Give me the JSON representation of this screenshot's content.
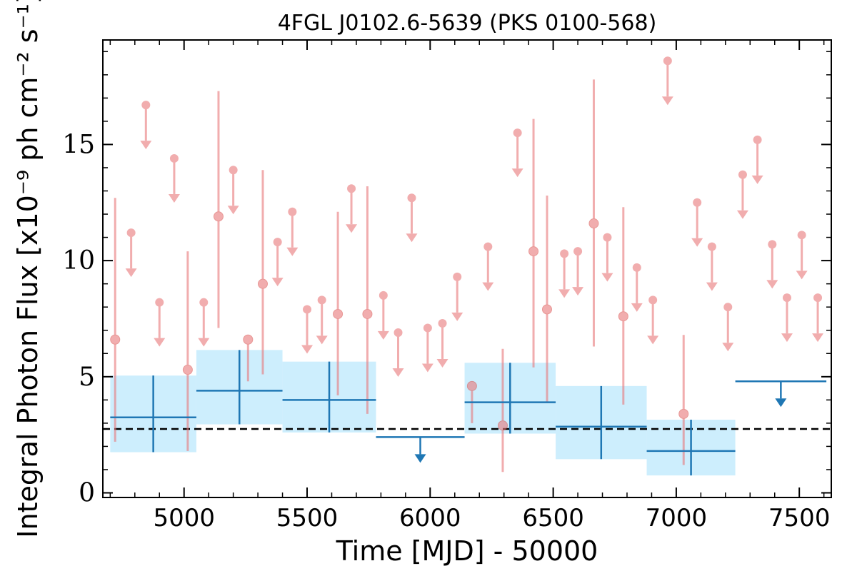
{
  "chart_data": {
    "type": "scatter",
    "title": "4FGL J0102.6-5639 (PKS 0100-568)",
    "xlabel": "Time [MJD] - 50000",
    "ylabel": "Integral Photon Flux [x10⁻⁹ ph cm⁻² s⁻¹]",
    "xlim": [
      4670,
      7630
    ],
    "ylim": [
      -0.2,
      19.5
    ],
    "xticks": [
      5000,
      5500,
      6000,
      6500,
      7000,
      7500
    ],
    "xtick_labels": [
      "5000",
      "5500",
      "6000",
      "6500",
      "7000",
      "7500"
    ],
    "yticks": [
      0,
      5,
      10,
      15
    ],
    "ytick_labels": [
      "0",
      "5",
      "10",
      "15"
    ],
    "grid": false,
    "legend": "none",
    "average_flux": 2.75,
    "colors": {
      "short_bins": "#e8777a",
      "long_bins": "#1f77b4",
      "band": "#cdeefd",
      "average_line": "#000000"
    },
    "short_bin_detections": [
      {
        "x": 4720,
        "y": 6.6,
        "ylo": 2.2,
        "yhi": 12.7
      },
      {
        "x": 5015,
        "y": 5.3,
        "ylo": 1.8,
        "yhi": 10.4
      },
      {
        "x": 5140,
        "y": 11.9,
        "ylo": 7.1,
        "yhi": 17.3
      },
      {
        "x": 5260,
        "y": 6.6,
        "ylo": 4.8,
        "yhi": 6.6
      },
      {
        "x": 5320,
        "y": 9.0,
        "ylo": 5.1,
        "yhi": 13.9
      },
      {
        "x": 5625,
        "y": 7.7,
        "ylo": 4.2,
        "yhi": 12.1
      },
      {
        "x": 5745,
        "y": 7.7,
        "ylo": 3.4,
        "yhi": 13.2
      },
      {
        "x": 6170,
        "y": 4.6,
        "ylo": 3.0,
        "yhi": 4.6
      },
      {
        "x": 6295,
        "y": 2.9,
        "ylo": 0.9,
        "yhi": 6.2
      },
      {
        "x": 6420,
        "y": 10.4,
        "ylo": 5.4,
        "yhi": 16.1
      },
      {
        "x": 6475,
        "y": 7.9,
        "ylo": 3.9,
        "yhi": 12.8
      },
      {
        "x": 6665,
        "y": 11.6,
        "ylo": 6.3,
        "yhi": 17.8
      },
      {
        "x": 6785,
        "y": 7.6,
        "ylo": 3.8,
        "yhi": 12.3
      },
      {
        "x": 7030,
        "y": 3.4,
        "ylo": 1.2,
        "yhi": 6.8
      }
    ],
    "short_bin_upper_limits": [
      {
        "x": 4785,
        "y": 11.2
      },
      {
        "x": 4845,
        "y": 16.7
      },
      {
        "x": 4900,
        "y": 8.2
      },
      {
        "x": 4960,
        "y": 14.4
      },
      {
        "x": 5080,
        "y": 8.2
      },
      {
        "x": 5200,
        "y": 13.9
      },
      {
        "x": 5380,
        "y": 10.8
      },
      {
        "x": 5440,
        "y": 12.1
      },
      {
        "x": 5500,
        "y": 7.9
      },
      {
        "x": 5560,
        "y": 8.3
      },
      {
        "x": 5680,
        "y": 13.1
      },
      {
        "x": 5810,
        "y": 8.5
      },
      {
        "x": 5870,
        "y": 6.9
      },
      {
        "x": 5925,
        "y": 12.7
      },
      {
        "x": 5990,
        "y": 7.1
      },
      {
        "x": 6050,
        "y": 7.3
      },
      {
        "x": 6110,
        "y": 9.3
      },
      {
        "x": 6235,
        "y": 10.6
      },
      {
        "x": 6355,
        "y": 15.5
      },
      {
        "x": 6545,
        "y": 10.3
      },
      {
        "x": 6600,
        "y": 10.4
      },
      {
        "x": 6720,
        "y": 11.0
      },
      {
        "x": 6840,
        "y": 9.7
      },
      {
        "x": 6905,
        "y": 8.3
      },
      {
        "x": 6965,
        "y": 18.6
      },
      {
        "x": 7085,
        "y": 12.5
      },
      {
        "x": 7145,
        "y": 10.6
      },
      {
        "x": 7210,
        "y": 8.0
      },
      {
        "x": 7270,
        "y": 13.7
      },
      {
        "x": 7330,
        "y": 15.2
      },
      {
        "x": 7390,
        "y": 10.7
      },
      {
        "x": 7450,
        "y": 8.4
      },
      {
        "x": 7510,
        "y": 11.1
      },
      {
        "x": 7575,
        "y": 8.4
      }
    ],
    "long_bin_detections": [
      {
        "x0": 4700,
        "x1": 5050,
        "y": 3.25,
        "ylo": 1.75,
        "yhi": 5.05,
        "band_lo": 1.75,
        "band_hi": 5.05
      },
      {
        "x0": 5050,
        "x1": 5400,
        "y": 4.4,
        "ylo": 2.95,
        "yhi": 6.15,
        "band_lo": 2.95,
        "band_hi": 6.15
      },
      {
        "x0": 5400,
        "x1": 5780,
        "y": 4.0,
        "ylo": 2.6,
        "yhi": 5.65,
        "band_lo": 2.6,
        "band_hi": 5.65
      },
      {
        "x0": 6140,
        "x1": 6510,
        "y": 3.9,
        "ylo": 2.55,
        "yhi": 5.6,
        "band_lo": 2.55,
        "band_hi": 5.6
      },
      {
        "x0": 6510,
        "x1": 6880,
        "y": 2.85,
        "ylo": 1.45,
        "yhi": 4.6,
        "band_lo": 1.45,
        "band_hi": 4.6
      },
      {
        "x0": 6880,
        "x1": 7240,
        "y": 1.8,
        "ylo": 0.75,
        "yhi": 3.15,
        "band_lo": 0.75,
        "band_hi": 3.15
      }
    ],
    "long_bin_upper_limits": [
      {
        "x0": 5780,
        "x1": 6140,
        "y": 2.4
      },
      {
        "x0": 7240,
        "x1": 7610,
        "y": 4.8
      }
    ]
  }
}
